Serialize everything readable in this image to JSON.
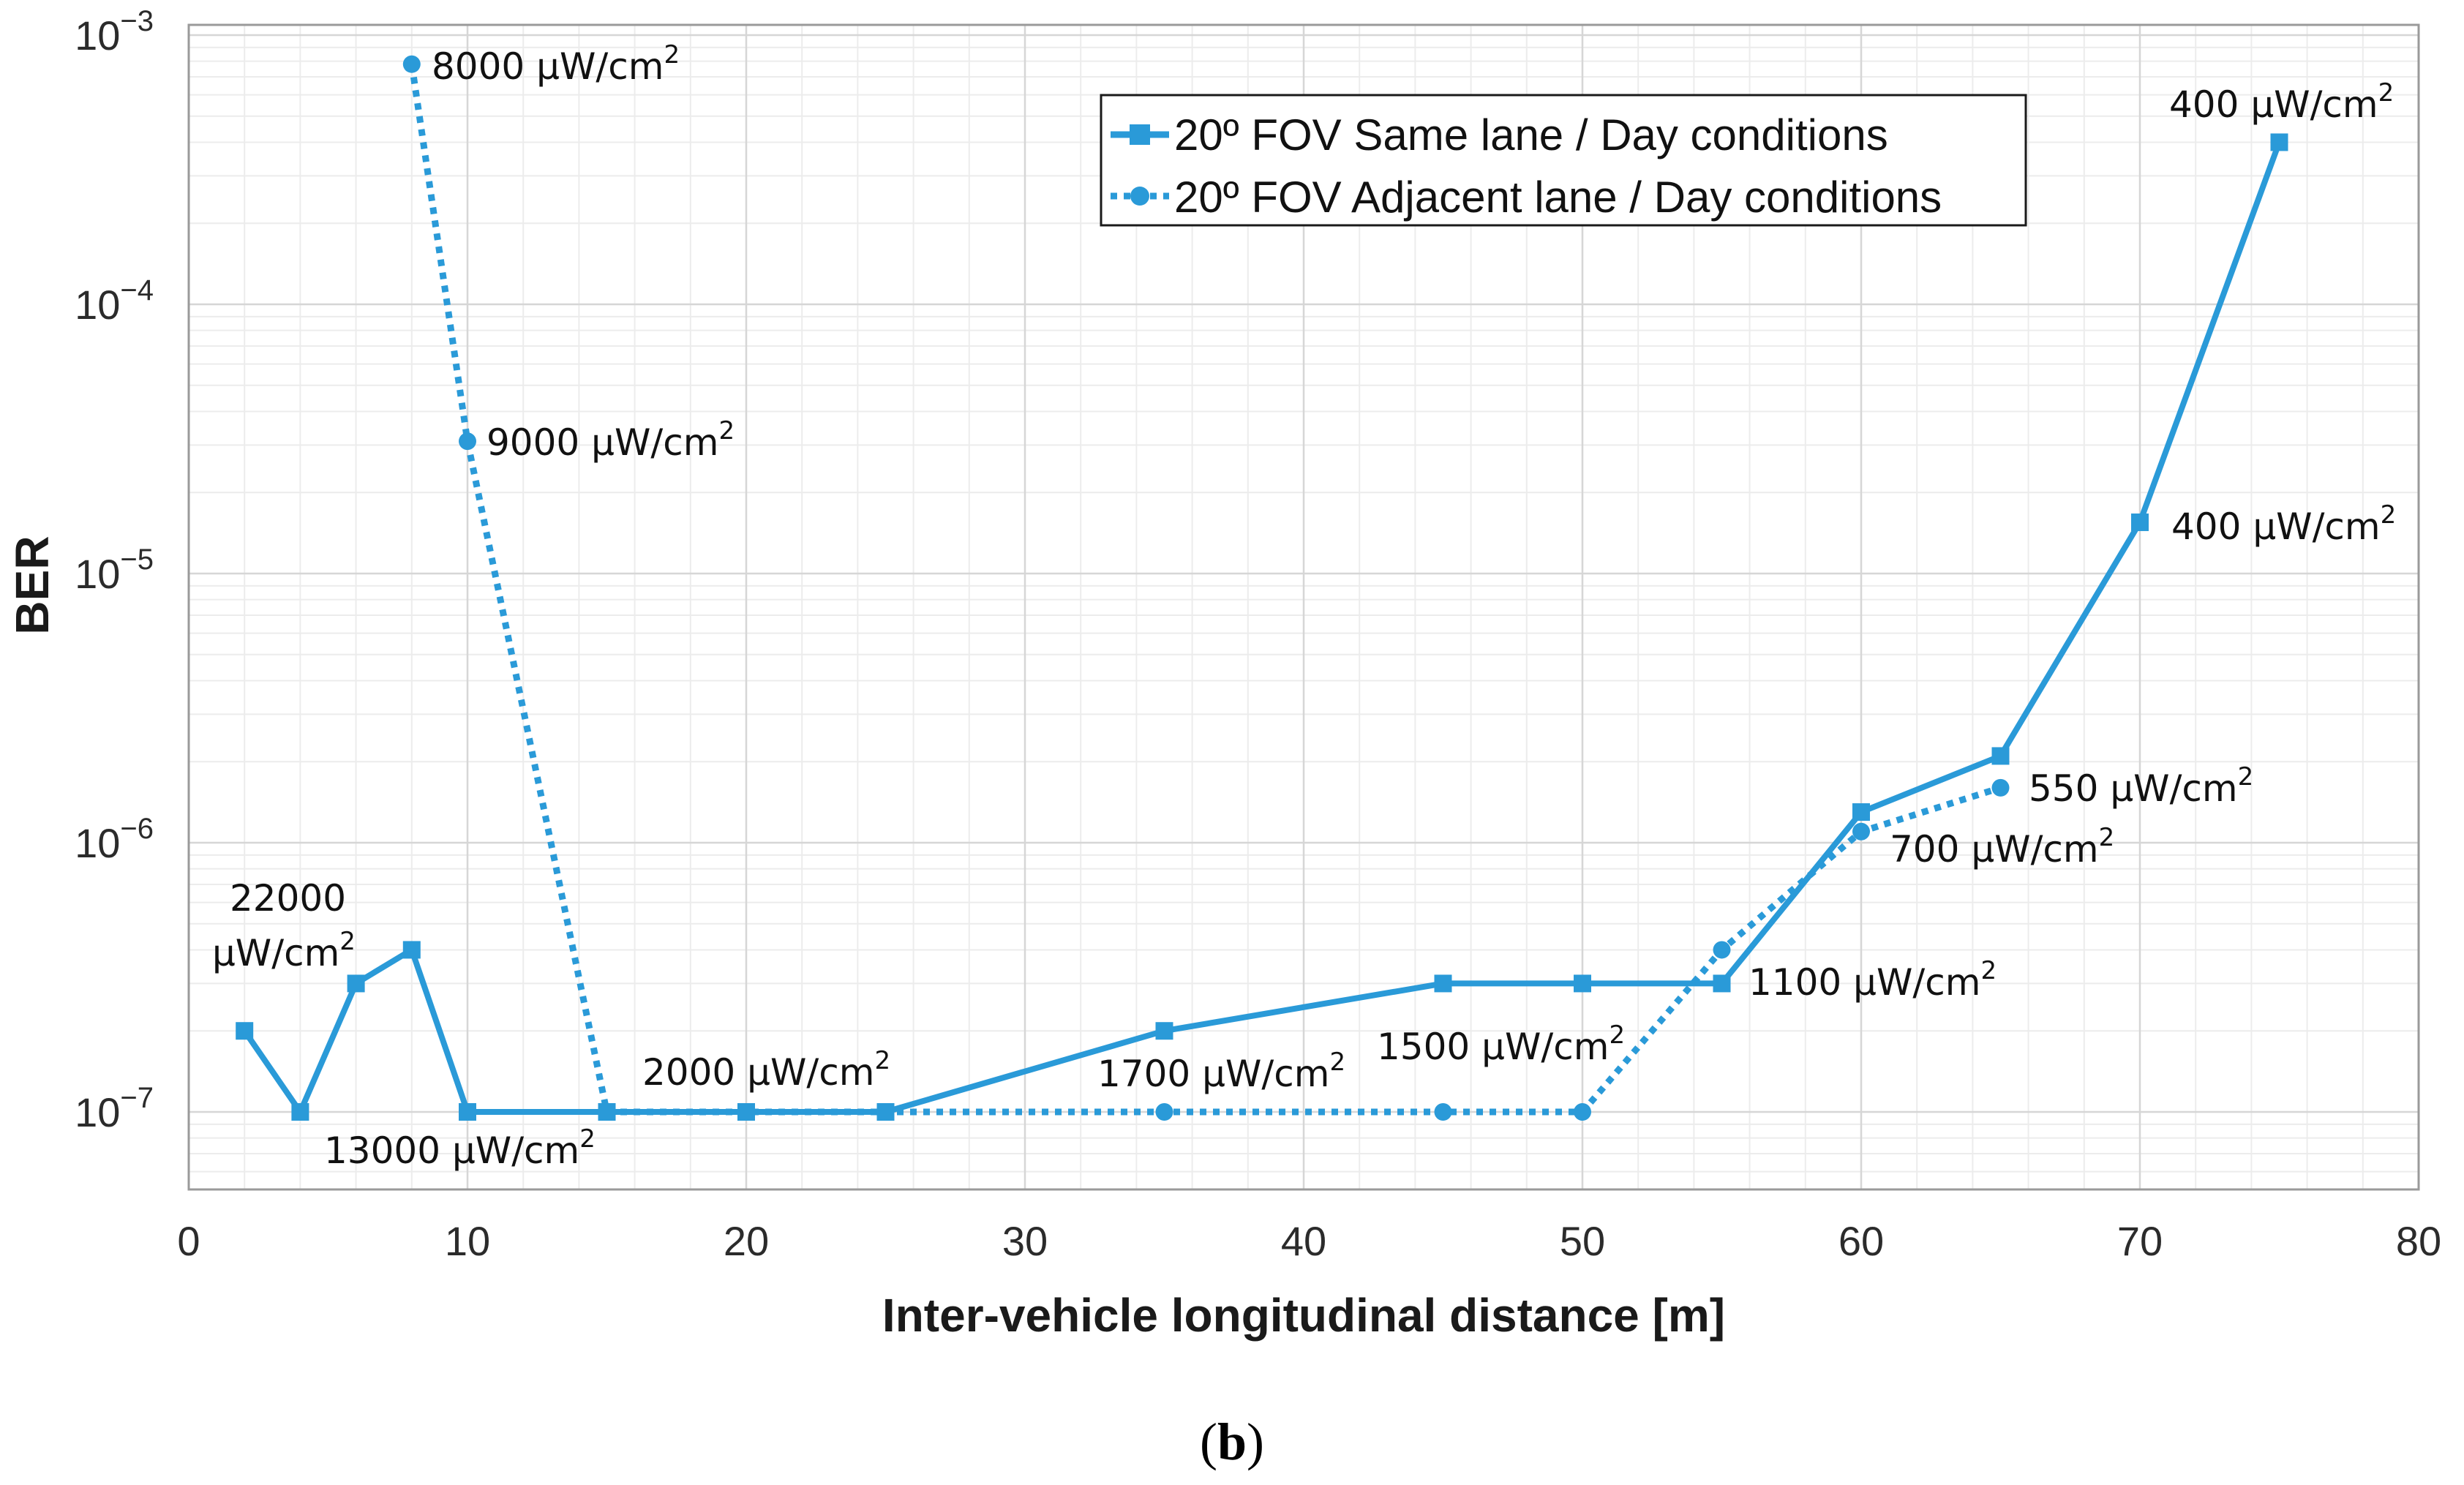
{
  "chart_data": {
    "type": "line",
    "title": "",
    "xlabel": "Inter-vehicle longitudinal distance [m]",
    "ylabel": "BER",
    "xlim": [
      0,
      80
    ],
    "ylim": [
      5e-08,
      0.001
    ],
    "yscale": "log",
    "grid": true,
    "x_ticks": [
      0,
      10,
      20,
      30,
      40,
      50,
      60,
      70,
      80
    ],
    "y_ticks": [
      {
        "value": 1e-07,
        "base": "10",
        "exp": "−7"
      },
      {
        "value": 1e-06,
        "base": "10",
        "exp": "−6"
      },
      {
        "value": 1e-05,
        "base": "10",
        "exp": "−5"
      },
      {
        "value": 0.0001,
        "base": "10",
        "exp": "−4"
      },
      {
        "value": 0.001,
        "base": "10",
        "exp": "−3"
      }
    ],
    "legend_position": "top-right",
    "color": "#2a9ad8",
    "series": [
      {
        "name": "20º FOV Same lane / Day conditions",
        "style": "solid",
        "marker": "square",
        "x": [
          2,
          4,
          6,
          8,
          10,
          15,
          20,
          25,
          35,
          45,
          50,
          55,
          60,
          65,
          70,
          75
        ],
        "y": [
          2e-07,
          1e-07,
          3e-07,
          4e-07,
          1e-07,
          1e-07,
          1e-07,
          1e-07,
          2e-07,
          3e-07,
          3e-07,
          3e-07,
          1.3e-06,
          2.1e-06,
          1.55e-05,
          0.0004
        ]
      },
      {
        "name": "20º FOV Adjacent lane / Day conditions",
        "style": "dotted",
        "marker": "circle",
        "x": [
          8,
          10,
          15,
          25,
          35,
          45,
          50,
          55,
          60,
          65
        ],
        "y": [
          0.00078,
          3.1e-05,
          1e-07,
          1e-07,
          1e-07,
          1e-07,
          1e-07,
          4e-07,
          1.1e-06,
          1.6e-06
        ]
      }
    ],
    "annotations": [
      {
        "id": "ann-8000",
        "main": "8000 μW/cm",
        "sup": "2"
      },
      {
        "id": "ann-9000",
        "main": "9000 μW/cm",
        "sup": "2"
      },
      {
        "id": "ann-22000-top",
        "main": "22000",
        "sup": ""
      },
      {
        "id": "ann-22000-bottom",
        "main": "μW/cm",
        "sup": "2"
      },
      {
        "id": "ann-13000",
        "main": "13000 μW/cm",
        "sup": "2"
      },
      {
        "id": "ann-2000",
        "main": "2000 μW/cm",
        "sup": "2"
      },
      {
        "id": "ann-1700",
        "main": "1700 μW/cm",
        "sup": "2"
      },
      {
        "id": "ann-1500",
        "main": "1500 μW/cm",
        "sup": "2"
      },
      {
        "id": "ann-1100",
        "main": "1100 μW/cm",
        "sup": "2"
      },
      {
        "id": "ann-700",
        "main": "700 μW/cm",
        "sup": "2"
      },
      {
        "id": "ann-550",
        "main": "550 μW/cm",
        "sup": "2"
      },
      {
        "id": "ann-400-mid",
        "main": "400 μW/cm",
        "sup": "2"
      },
      {
        "id": "ann-400-top",
        "main": "400 μW/cm",
        "sup": "2"
      }
    ]
  },
  "caption": {
    "open": "(",
    "letter": "b",
    "close": ")"
  }
}
